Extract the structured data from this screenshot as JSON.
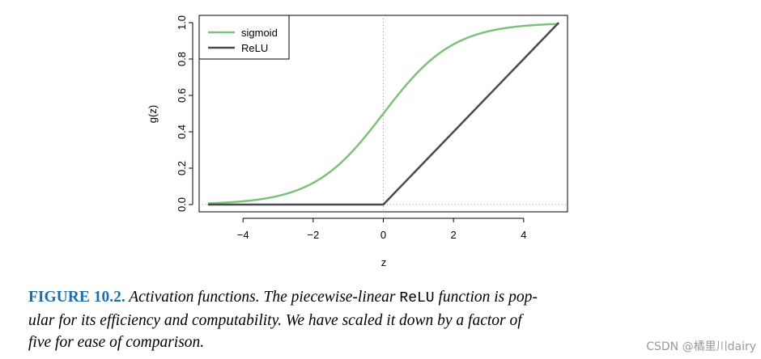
{
  "chart_data": {
    "type": "line",
    "xlabel": "z",
    "ylabel": "g(z)",
    "xlim": [
      -5.25,
      5.25
    ],
    "ylim": [
      -0.04,
      1.04
    ],
    "x_ticks": [
      -4,
      -2,
      0,
      2,
      4
    ],
    "x_tick_labels": [
      "−4",
      "−2",
      "0",
      "2",
      "4"
    ],
    "y_ticks": [
      0.0,
      0.2,
      0.4,
      0.6,
      0.8,
      1.0
    ],
    "y_tick_labels": [
      "0.0",
      "0.2",
      "0.4",
      "0.6",
      "0.8",
      "1.0"
    ],
    "grid": false,
    "reference_lines": {
      "vertical_at_x": 0,
      "horizontal_at_y": 0,
      "style": "dotted"
    },
    "legend_position": "top-left",
    "series": [
      {
        "name": "sigmoid",
        "color": "#7fc07a",
        "x": [
          -5,
          -4.5,
          -4,
          -3.5,
          -3,
          -2.5,
          -2,
          -1.5,
          -1,
          -0.5,
          0,
          0.5,
          1,
          1.5,
          2,
          2.5,
          3,
          3.5,
          4,
          4.5,
          5
        ],
        "y": [
          0.007,
          0.011,
          0.018,
          0.029,
          0.047,
          0.076,
          0.119,
          0.182,
          0.269,
          0.378,
          0.5,
          0.622,
          0.731,
          0.818,
          0.881,
          0.924,
          0.953,
          0.971,
          0.982,
          0.989,
          0.993
        ]
      },
      {
        "name": "ReLU",
        "color": "#4a4a4a",
        "x": [
          -5,
          0,
          5
        ],
        "y": [
          0,
          0,
          1
        ]
      }
    ]
  },
  "caption": {
    "label": "FIGURE 10.2.",
    "line1_before_code": " Activation functions. The piecewise-linear ",
    "code": "ReLU",
    "line1_after_code": " function is pop-",
    "line2": "ular for its efficiency and computability. We have scaled it down by a factor of",
    "line3": "five for ease of comparison."
  },
  "watermark": "CSDN @橘里川dairy"
}
